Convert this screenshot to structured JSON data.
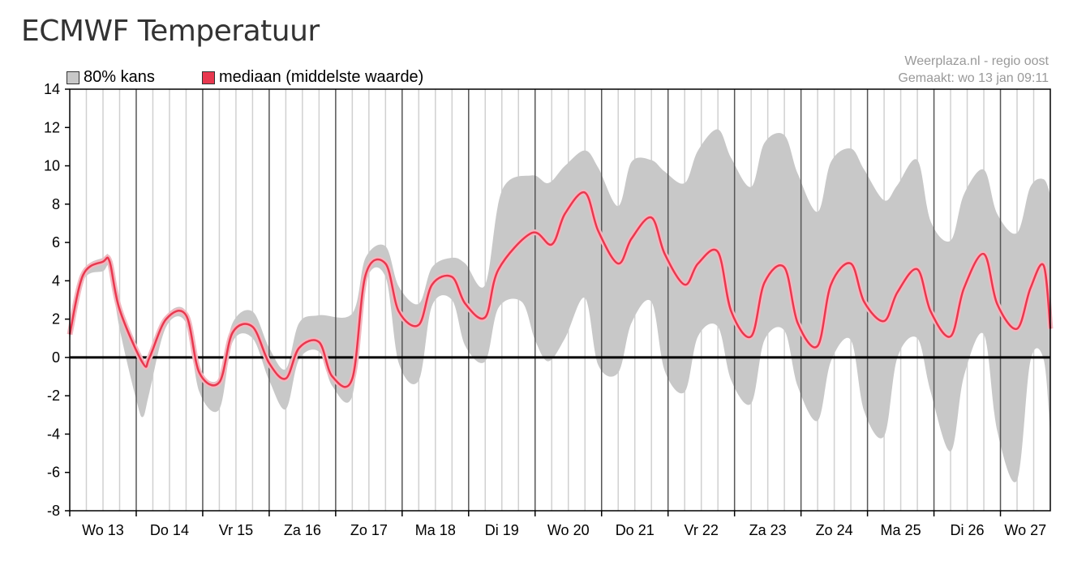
{
  "title": "ECMWF Temperatuur",
  "legend": {
    "band_label": "80% kans",
    "median_label": "mediaan (middelste waarde)"
  },
  "credit": {
    "source": "Weerplaza.nl - regio oost",
    "made": "Gemaakt: wo 13 jan 09:11"
  },
  "colors": {
    "band": "#c8c8c8",
    "median": "#e8384f",
    "median_halo": "#f3b7bf",
    "zero_line": "#000000",
    "day_grid": "#555555",
    "hour_grid": "#d0d0d0"
  },
  "chart_data": {
    "type": "area",
    "title": "ECMWF Temperatuur",
    "xlabel": "",
    "ylabel": "",
    "ylim": [
      -8,
      14
    ],
    "yticks": [
      14,
      12,
      10,
      8,
      6,
      4,
      2,
      0,
      -2,
      -4,
      -6,
      -8
    ],
    "day_labels": [
      "Wo 13",
      "Do 14",
      "Vr 15",
      "Za 16",
      "Zo 17",
      "Ma 18",
      "Di 19",
      "Wo 20",
      "Do 21",
      "Vr 22",
      "Za 23",
      "Zo 24",
      "Ma 25",
      "Di 26",
      "Wo 27"
    ],
    "x_unit": "days after Wo 13 00:00",
    "xlim": [
      0,
      14.75
    ],
    "grid": true,
    "legend_position": "top-left",
    "series": [
      {
        "name": "mediaan (middelste waarde)",
        "points": [
          [
            0,
            1.2
          ],
          [
            0.2,
            4.3
          ],
          [
            0.5,
            5.0
          ],
          [
            0.6,
            5.0
          ],
          [
            0.75,
            2.5
          ],
          [
            1.1,
            -0.3
          ],
          [
            1.2,
            0.0
          ],
          [
            1.45,
            2.0
          ],
          [
            1.75,
            2.2
          ],
          [
            1.95,
            -0.8
          ],
          [
            2.25,
            -1.3
          ],
          [
            2.45,
            1.3
          ],
          [
            2.75,
            1.6
          ],
          [
            3.0,
            -0.3
          ],
          [
            3.25,
            -1.1
          ],
          [
            3.45,
            0.5
          ],
          [
            3.75,
            0.8
          ],
          [
            3.95,
            -1.0
          ],
          [
            4.25,
            -1.1
          ],
          [
            4.45,
            4.3
          ],
          [
            4.75,
            4.9
          ],
          [
            4.95,
            2.4
          ],
          [
            5.25,
            1.7
          ],
          [
            5.45,
            3.8
          ],
          [
            5.75,
            4.2
          ],
          [
            5.95,
            2.8
          ],
          [
            6.25,
            2.1
          ],
          [
            6.45,
            4.6
          ],
          [
            6.95,
            6.5
          ],
          [
            7.25,
            5.9
          ],
          [
            7.45,
            7.5
          ],
          [
            7.75,
            8.6
          ],
          [
            7.95,
            6.6
          ],
          [
            8.25,
            4.9
          ],
          [
            8.45,
            6.2
          ],
          [
            8.75,
            7.3
          ],
          [
            8.95,
            5.4
          ],
          [
            9.25,
            3.8
          ],
          [
            9.45,
            4.9
          ],
          [
            9.75,
            5.5
          ],
          [
            9.95,
            2.4
          ],
          [
            10.25,
            1.1
          ],
          [
            10.45,
            3.9
          ],
          [
            10.75,
            4.7
          ],
          [
            10.95,
            1.8
          ],
          [
            11.25,
            0.6
          ],
          [
            11.45,
            3.8
          ],
          [
            11.75,
            4.9
          ],
          [
            11.95,
            2.9
          ],
          [
            12.25,
            1.9
          ],
          [
            12.45,
            3.4
          ],
          [
            12.75,
            4.6
          ],
          [
            12.95,
            2.4
          ],
          [
            13.25,
            1.1
          ],
          [
            13.45,
            3.6
          ],
          [
            13.75,
            5.4
          ],
          [
            13.95,
            2.8
          ],
          [
            14.25,
            1.5
          ],
          [
            14.45,
            3.6
          ],
          [
            14.65,
            4.8
          ],
          [
            14.75,
            1.5
          ]
        ]
      },
      {
        "name": "80% kans",
        "upper": [
          [
            0,
            1.6
          ],
          [
            0.2,
            4.5
          ],
          [
            0.5,
            5.2
          ],
          [
            0.6,
            5.2
          ],
          [
            0.75,
            2.8
          ],
          [
            1.1,
            -0.1
          ],
          [
            1.2,
            0.2
          ],
          [
            1.45,
            2.2
          ],
          [
            1.75,
            2.4
          ],
          [
            1.95,
            -0.6
          ],
          [
            2.25,
            -1.1
          ],
          [
            2.45,
            1.8
          ],
          [
            2.75,
            2.4
          ],
          [
            3.0,
            0.5
          ],
          [
            3.25,
            -0.6
          ],
          [
            3.45,
            1.8
          ],
          [
            3.75,
            2.2
          ],
          [
            4.25,
            2.3
          ],
          [
            4.45,
            5.2
          ],
          [
            4.75,
            5.8
          ],
          [
            4.95,
            3.7
          ],
          [
            5.25,
            2.8
          ],
          [
            5.45,
            4.7
          ],
          [
            5.75,
            5.2
          ],
          [
            5.95,
            4.9
          ],
          [
            6.25,
            3.8
          ],
          [
            6.5,
            8.7
          ],
          [
            6.95,
            9.5
          ],
          [
            7.2,
            9.1
          ],
          [
            7.45,
            10.0
          ],
          [
            7.75,
            10.8
          ],
          [
            7.95,
            9.9
          ],
          [
            8.25,
            7.9
          ],
          [
            8.45,
            10.2
          ],
          [
            8.75,
            10.3
          ],
          [
            8.95,
            9.7
          ],
          [
            9.25,
            9.1
          ],
          [
            9.45,
            10.8
          ],
          [
            9.75,
            11.9
          ],
          [
            9.95,
            10.4
          ],
          [
            10.25,
            8.9
          ],
          [
            10.45,
            11.2
          ],
          [
            10.75,
            11.6
          ],
          [
            10.95,
            9.6
          ],
          [
            11.25,
            7.6
          ],
          [
            11.45,
            10.2
          ],
          [
            11.75,
            10.9
          ],
          [
            11.95,
            9.8
          ],
          [
            12.25,
            8.2
          ],
          [
            12.45,
            9.0
          ],
          [
            12.75,
            10.3
          ],
          [
            12.95,
            7.1
          ],
          [
            13.25,
            6.1
          ],
          [
            13.45,
            8.5
          ],
          [
            13.75,
            9.8
          ],
          [
            13.95,
            7.5
          ],
          [
            14.25,
            6.5
          ],
          [
            14.45,
            8.9
          ],
          [
            14.65,
            9.3
          ],
          [
            14.75,
            8.5
          ]
        ],
        "lower": [
          [
            0,
            0.9
          ],
          [
            0.2,
            4.0
          ],
          [
            0.5,
            4.5
          ],
          [
            0.6,
            4.6
          ],
          [
            0.75,
            1.5
          ],
          [
            1.0,
            -2.2
          ],
          [
            1.1,
            -3.1
          ],
          [
            1.2,
            -1.8
          ],
          [
            1.45,
            1.6
          ],
          [
            1.75,
            1.8
          ],
          [
            1.95,
            -1.8
          ],
          [
            2.25,
            -2.7
          ],
          [
            2.45,
            0.8
          ],
          [
            2.75,
            1.0
          ],
          [
            3.0,
            -1.2
          ],
          [
            3.25,
            -2.7
          ],
          [
            3.45,
            -0.1
          ],
          [
            3.75,
            0.3
          ],
          [
            3.95,
            -1.5
          ],
          [
            4.25,
            -2.0
          ],
          [
            4.45,
            3.9
          ],
          [
            4.75,
            4.2
          ],
          [
            4.95,
            -0.3
          ],
          [
            5.25,
            -1.2
          ],
          [
            5.45,
            2.7
          ],
          [
            5.75,
            3.0
          ],
          [
            5.95,
            0.6
          ],
          [
            6.25,
            -0.2
          ],
          [
            6.45,
            2.6
          ],
          [
            6.8,
            2.9
          ],
          [
            7.0,
            0.9
          ],
          [
            7.2,
            -0.2
          ],
          [
            7.45,
            1.0
          ],
          [
            7.75,
            3.1
          ],
          [
            7.95,
            -0.4
          ],
          [
            8.25,
            -0.8
          ],
          [
            8.45,
            1.8
          ],
          [
            8.75,
            2.9
          ],
          [
            8.95,
            -0.7
          ],
          [
            9.25,
            -1.8
          ],
          [
            9.45,
            1.1
          ],
          [
            9.75,
            1.6
          ],
          [
            9.95,
            -1.2
          ],
          [
            10.25,
            -2.4
          ],
          [
            10.45,
            0.9
          ],
          [
            10.75,
            1.4
          ],
          [
            10.95,
            -1.5
          ],
          [
            11.25,
            -3.3
          ],
          [
            11.45,
            -0.2
          ],
          [
            11.75,
            0.9
          ],
          [
            11.95,
            -2.8
          ],
          [
            12.25,
            -4.1
          ],
          [
            12.45,
            0.0
          ],
          [
            12.75,
            1.0
          ],
          [
            12.95,
            -1.8
          ],
          [
            13.25,
            -4.9
          ],
          [
            13.45,
            -1.0
          ],
          [
            13.75,
            1.2
          ],
          [
            13.95,
            -3.8
          ],
          [
            14.25,
            -6.4
          ],
          [
            14.45,
            -0.2
          ],
          [
            14.65,
            -0.1
          ],
          [
            14.75,
            -4.0
          ]
        ]
      }
    ]
  }
}
